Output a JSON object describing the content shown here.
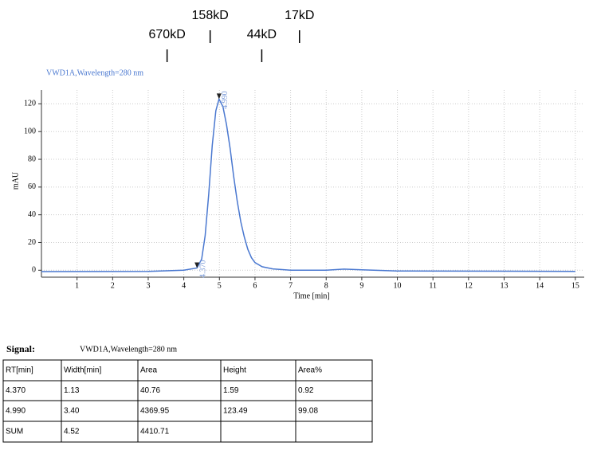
{
  "chart_data": {
    "type": "line",
    "annotation": "VWD1A,Wavelength=280 nm",
    "x_label": "Time [min]",
    "y_label": "mAU",
    "x": [
      0,
      3,
      4,
      4.37,
      4.5,
      4.6,
      4.7,
      4.8,
      4.9,
      4.99,
      5.1,
      5.2,
      5.3,
      5.4,
      5.5,
      5.6,
      5.7,
      5.8,
      5.9,
      6.0,
      6.2,
      6.5,
      7,
      8,
      8.5,
      9,
      10,
      15
    ],
    "series": [
      {
        "color": "#4a78d0",
        "values": [
          -1,
          -0.8,
          0,
          1.59,
          8,
          25,
          55,
          90,
          115,
          123.49,
          118,
          105,
          88,
          68,
          50,
          35,
          24,
          15,
          9,
          5.5,
          2.5,
          1,
          0,
          0,
          0.8,
          0.3,
          -0.5,
          -0.8
        ]
      }
    ],
    "peak_labels": [
      {
        "value": 4.37,
        "label": "4.370"
      },
      {
        "value": 4.99,
        "label": "4.990"
      }
    ],
    "markers": [
      {
        "value": 3.53,
        "label": "670kD"
      },
      {
        "value": 4.74,
        "label": "158kD"
      },
      {
        "value": 6.19,
        "label": "44kD"
      },
      {
        "value": 7.25,
        "label": "17kD"
      }
    ],
    "xlim": [
      0,
      15.25
    ],
    "ylim": [
      -5,
      130
    ],
    "xticks": [
      1,
      2,
      3,
      4,
      5,
      6,
      7,
      8,
      9,
      10,
      11,
      12,
      13,
      14,
      15
    ],
    "yticks": [
      0,
      20,
      40,
      60,
      80,
      100,
      120
    ],
    "grid": true
  },
  "table": {
    "signal_label": "Signal:",
    "signal_name": "VWD1A,Wavelength=280 nm",
    "header": [
      "RT[min]",
      "Width[min]",
      "Area",
      "Height",
      "Area%"
    ],
    "rows": [
      [
        "4.370",
        "1.13",
        "40.76",
        "1.59",
        "0.92"
      ],
      [
        "4.990",
        "3.40",
        "4369.95",
        "123.49",
        "99.08"
      ],
      [
        "SUM",
        "4.52",
        "4410.71",
        "",
        ""
      ]
    ]
  }
}
